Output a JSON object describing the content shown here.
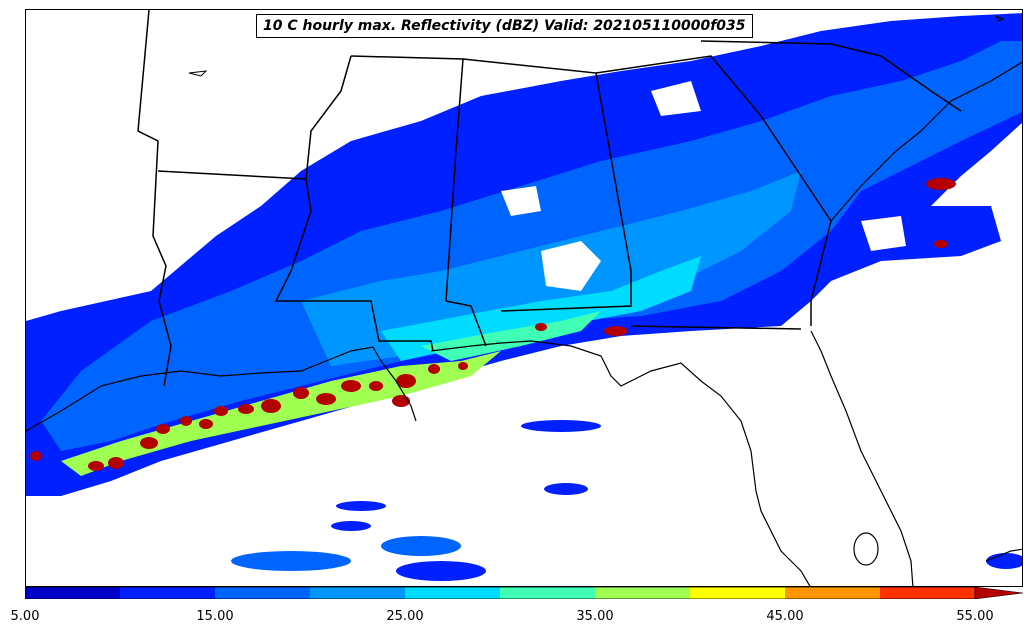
{
  "title": "10 C hourly max. Reflectivity (dBZ) Valid: 202105110000f035",
  "colorbar": {
    "colors": [
      "#0000c8",
      "#0020ff",
      "#0064ff",
      "#0096ff",
      "#00dcff",
      "#40ffb4",
      "#a0ff50",
      "#ffff00",
      "#ff9600",
      "#ff3200",
      "#b40000"
    ],
    "extend_color": "#b40000",
    "tick_labels": [
      "5.00",
      "15.00",
      "25.00",
      "35.00",
      "45.00",
      "55.00"
    ]
  },
  "legend": {
    "title": "",
    "levels": [
      5,
      10,
      15,
      20,
      25,
      30,
      35,
      40,
      45,
      50,
      55
    ]
  },
  "map": {
    "projection": "Lambert conformal",
    "region": "Southeastern United States",
    "ocean": "Gulf of Mexico",
    "variable": "Reflectivity (dBZ)",
    "valid": "202105110000f035"
  }
}
